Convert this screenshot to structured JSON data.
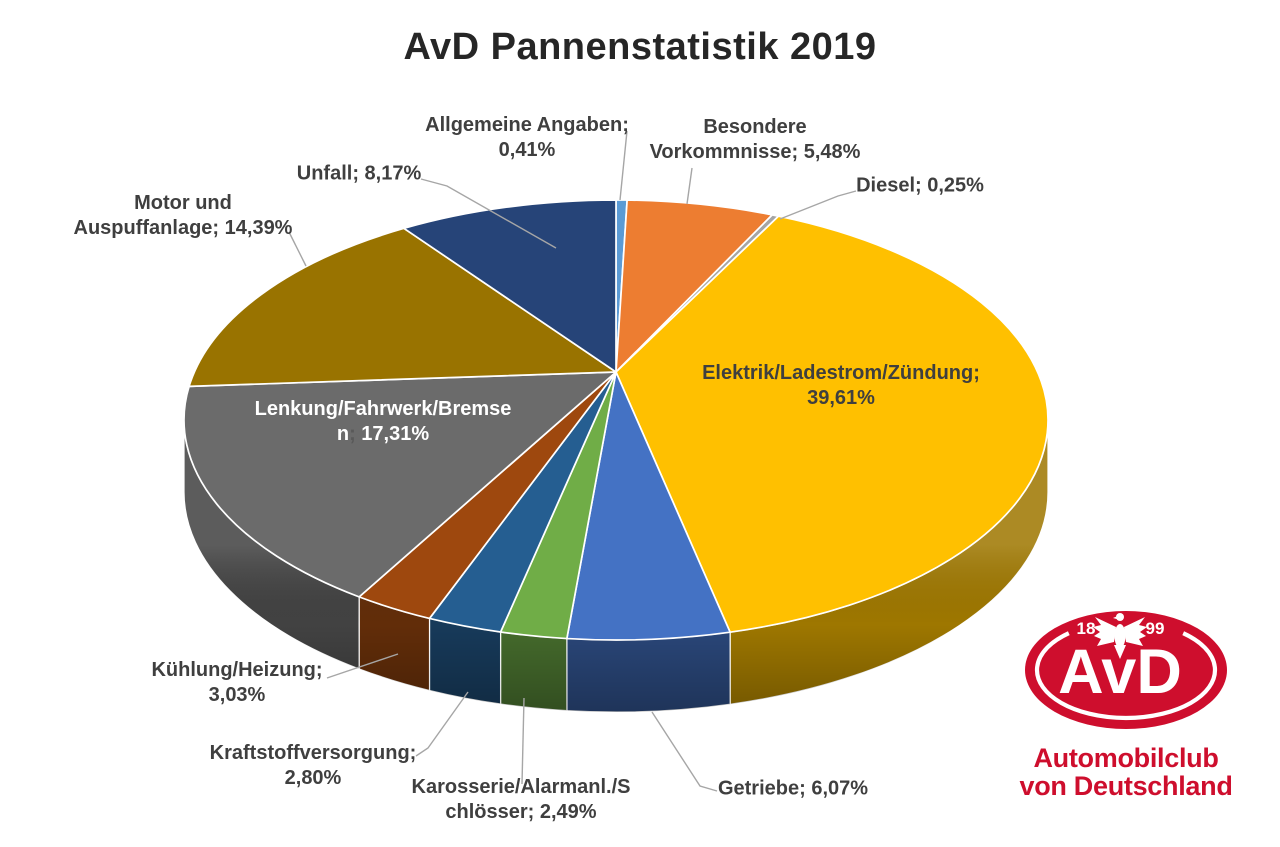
{
  "title": "AvD Pannenstatistik 2019",
  "chart_data": {
    "type": "pie",
    "style": "3d",
    "start_angle_deg": 0,
    "direction": "clockwise",
    "value_suffix": "%",
    "number_format": "decimal-comma",
    "title": "AvD Pannenstatistik 2019",
    "slices": [
      {
        "id": "allgemeine-angaben",
        "label": "Allgemeine Angaben",
        "value": 0.41,
        "display": "0,41%",
        "color": "#5B9BD5",
        "callout": {
          "lines": [
            "Allgemeine Angaben;",
            "0,41%"
          ]
        }
      },
      {
        "id": "besondere-vorkommnisse",
        "label": "Besondere Vorkommnisse",
        "value": 5.48,
        "display": "5,48%",
        "color": "#ED7D31",
        "callout": {
          "lines": [
            "Besondere",
            "Vorkommnisse; 5,48%"
          ]
        }
      },
      {
        "id": "diesel",
        "label": "Diesel",
        "value": 0.25,
        "display": "0,25%",
        "color": "#A5A5A5",
        "callout": {
          "lines": [
            "Diesel; 0,25%"
          ]
        }
      },
      {
        "id": "elektrik-ladestrom-zuendung",
        "label": "Elektrik/Ladestrom/Zündung",
        "value": 39.61,
        "display": "39,61%",
        "color": "#FFC000",
        "inside": {
          "lines": [
            "Elektrik/Ladestrom/Zündung;",
            "39,61%"
          ],
          "text_color": "#3F3F3F"
        }
      },
      {
        "id": "getriebe",
        "label": "Getriebe",
        "value": 6.07,
        "display": "6,07%",
        "color": "#4472C4",
        "callout": {
          "lines": [
            "Getriebe; 6,07%"
          ]
        }
      },
      {
        "id": "karosserie-alarmanl-schloesser",
        "label": "Karosserie/Alarmanl./Schlösser",
        "value": 2.49,
        "display": "2,49%",
        "color": "#70AD47",
        "callout": {
          "lines": [
            "Karosserie/Alarmanl./S",
            "chlösser; 2,49%"
          ]
        }
      },
      {
        "id": "kraftstoffversorgung",
        "label": "Kraftstoffversorgung",
        "value": 2.8,
        "display": "2,80%",
        "color": "#255E91",
        "callout": {
          "lines": [
            "Kraftstoffversorgung;",
            "2,80%"
          ]
        }
      },
      {
        "id": "kuehlung-heizung",
        "label": "Kühlung/Heizung",
        "value": 3.03,
        "display": "3,03%",
        "color": "#9E480E",
        "callout": {
          "lines": [
            "Kühlung/Heizung;",
            "3,03%"
          ]
        }
      },
      {
        "id": "lenkung-fahrwerk-bremsen",
        "label": "Lenkung/Fahrwerk/Bremsen",
        "value": 17.31,
        "display": "17,31%",
        "color": "#6B6B6B",
        "inside": {
          "lines": [
            "Lenkung/Fahrwerk/Bremse",
            [
              {
                "text": "n",
                "color": "#FFFFFF"
              },
              {
                "text": ";",
                "color": "#595959"
              },
              {
                "text": " 17,31%",
                "color": "#FFFFFF"
              }
            ]
          ],
          "text_color": "#FFFFFF"
        }
      },
      {
        "id": "motor-und-auspuffanlage",
        "label": "Motor und Auspuffanlage",
        "value": 14.39,
        "display": "14,39%",
        "color": "#997300",
        "callout": {
          "lines": [
            "Motor und",
            "Auspuffanlage; 14,39%"
          ]
        }
      },
      {
        "id": "unfall",
        "label": "Unfall",
        "value": 8.17,
        "display": "8,17%",
        "color": "#264478",
        "callout": {
          "lines": [
            "Unfall; 8,17%"
          ]
        }
      }
    ]
  },
  "logo": {
    "year_left": "18",
    "year_right": "99",
    "monogram": "AvD",
    "caption_line1": "Automobilclub",
    "caption_line2": "von Deutschland",
    "brand_red": "#CE0E2D"
  },
  "colors": {
    "label_text": "#3F3F3F",
    "leader_line": "#A6A6A6",
    "slice_border": "#FFFFFF",
    "title_text": "#262626"
  }
}
